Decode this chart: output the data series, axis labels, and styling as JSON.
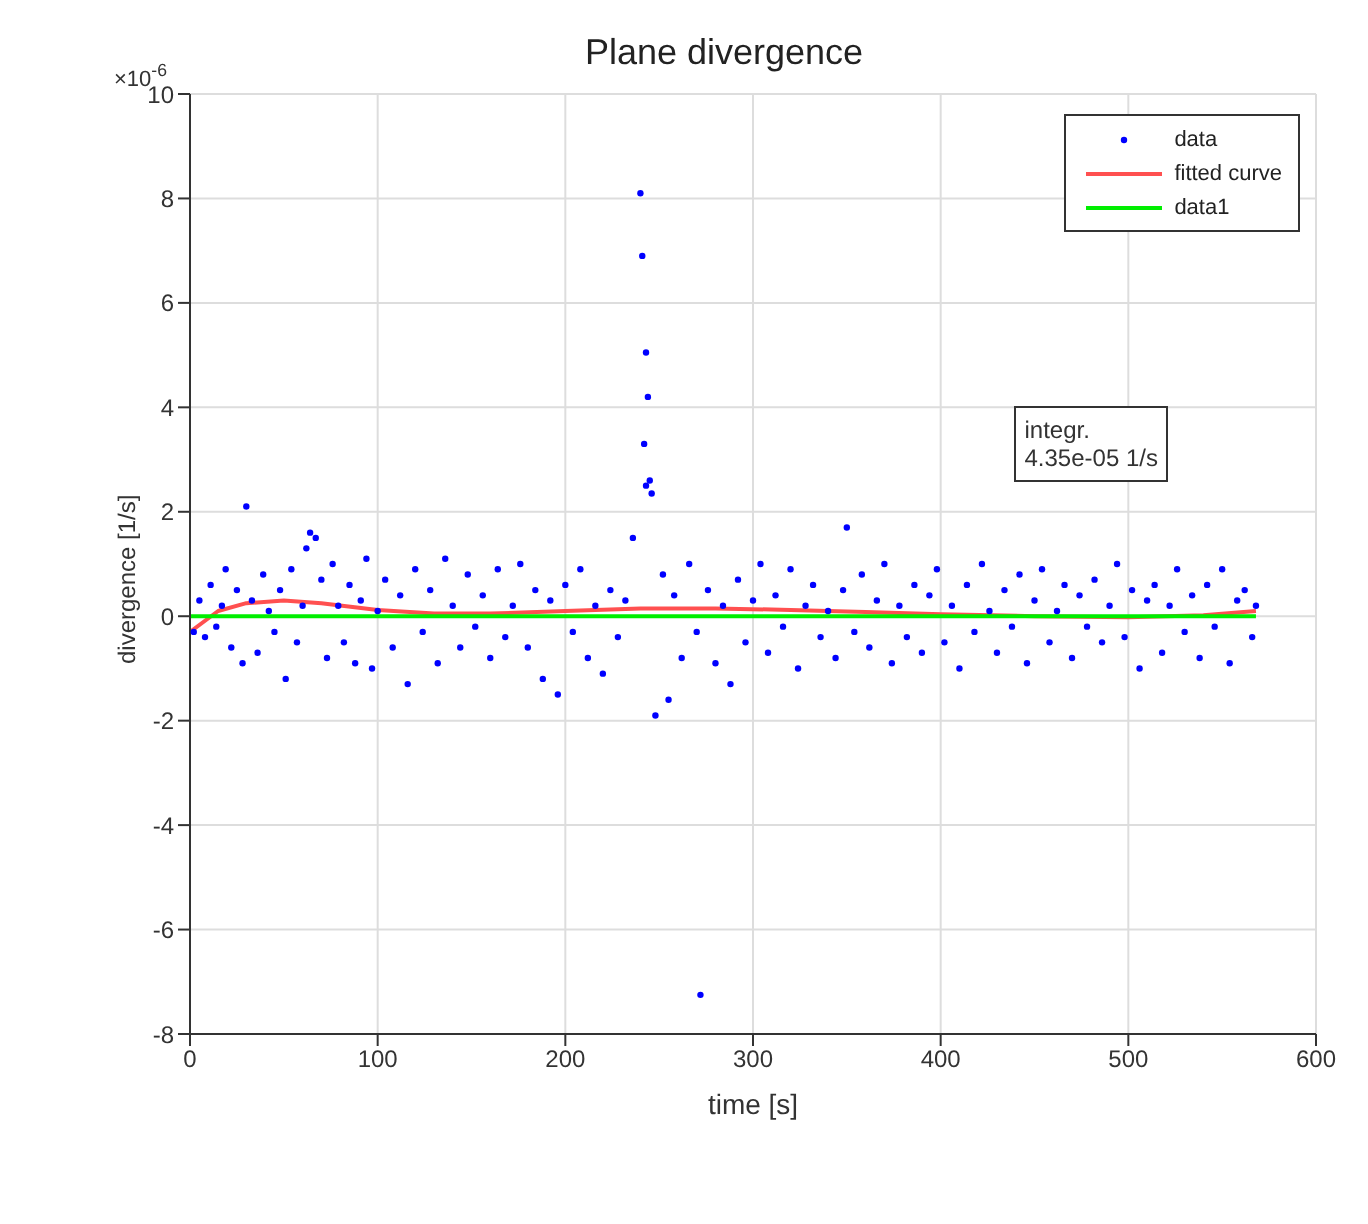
{
  "chart_data": {
    "type": "scatter",
    "title": "Plane divergence",
    "xlabel": "time [s]",
    "ylabel": "divergence [1/s]",
    "xlim": [
      0,
      600
    ],
    "xticks": [
      0,
      100,
      200,
      300,
      400,
      500,
      600
    ],
    "ylim": [
      -8,
      10
    ],
    "yticks": [
      -8,
      -6,
      -4,
      -2,
      0,
      2,
      4,
      6,
      8,
      10
    ],
    "grid": true,
    "legend": "top right",
    "line_style": "solid",
    "annotations": [
      "×10$^{-6}$",
      "integr.\n4.35e-05 1/s"
    ],
    "series": [
      {
        "name": "data",
        "type": "scatter",
        "marker": "circle",
        "color": "#0000ff",
        "x": [
          2,
          5,
          8,
          11,
          14,
          17,
          19,
          22,
          25,
          28,
          30,
          33,
          36,
          39,
          42,
          45,
          48,
          51,
          54,
          57,
          60,
          62,
          64,
          67,
          70,
          73,
          76,
          79,
          82,
          85,
          88,
          91,
          94,
          97,
          100,
          104,
          108,
          112,
          116,
          120,
          124,
          128,
          132,
          136,
          140,
          144,
          148,
          152,
          156,
          160,
          164,
          168,
          172,
          176,
          180,
          184,
          188,
          192,
          196,
          200,
          204,
          208,
          212,
          216,
          220,
          224,
          228,
          232,
          236,
          240,
          241,
          243,
          244,
          242,
          245,
          246,
          243,
          248,
          252,
          255,
          258,
          262,
          266,
          270,
          272,
          276,
          280,
          284,
          288,
          292,
          296,
          300,
          304,
          308,
          312,
          316,
          320,
          324,
          328,
          332,
          336,
          340,
          344,
          348,
          350,
          354,
          358,
          362,
          366,
          370,
          374,
          378,
          382,
          386,
          390,
          394,
          398,
          402,
          406,
          410,
          414,
          418,
          422,
          426,
          430,
          434,
          438,
          442,
          446,
          450,
          454,
          458,
          462,
          466,
          470,
          474,
          478,
          482,
          486,
          490,
          494,
          498,
          502,
          506,
          510,
          514,
          518,
          522,
          526,
          530,
          534,
          538,
          542,
          546,
          550,
          554,
          558,
          562,
          566,
          568
        ],
        "values": [
          -0.3,
          0.3,
          -0.4,
          0.6,
          -0.2,
          0.2,
          0.9,
          -0.6,
          0.5,
          -0.9,
          2.1,
          0.3,
          -0.7,
          0.8,
          0.1,
          -0.3,
          0.5,
          -1.2,
          0.9,
          -0.5,
          0.2,
          1.3,
          1.6,
          1.5,
          0.7,
          -0.8,
          1.0,
          0.2,
          -0.5,
          0.6,
          -0.9,
          0.3,
          1.1,
          -1.0,
          0.1,
          0.7,
          -0.6,
          0.4,
          -1.3,
          0.9,
          -0.3,
          0.5,
          -0.9,
          1.1,
          0.2,
          -0.6,
          0.8,
          -0.2,
          0.4,
          -0.8,
          0.9,
          -0.4,
          0.2,
          1.0,
          -0.6,
          0.5,
          -1.2,
          0.3,
          -1.5,
          0.6,
          -0.3,
          0.9,
          -0.8,
          0.2,
          -1.1,
          0.5,
          -0.4,
          0.3,
          1.5,
          8.1,
          6.9,
          5.05,
          4.2,
          3.3,
          2.6,
          2.35,
          2.5,
          -1.9,
          0.8,
          -1.6,
          0.4,
          -0.8,
          1.0,
          -0.3,
          -7.25,
          0.5,
          -0.9,
          0.2,
          -1.3,
          0.7,
          -0.5,
          0.3,
          1.0,
          -0.7,
          0.4,
          -0.2,
          0.9,
          -1.0,
          0.2,
          0.6,
          -0.4,
          0.1,
          -0.8,
          0.5,
          1.7,
          -0.3,
          0.8,
          -0.6,
          0.3,
          1.0,
          -0.9,
          0.2,
          -0.4,
          0.6,
          -0.7,
          0.4,
          0.9,
          -0.5,
          0.2,
          -1.0,
          0.6,
          -0.3,
          1.0,
          0.1,
          -0.7,
          0.5,
          -0.2,
          0.8,
          -0.9,
          0.3,
          0.9,
          -0.5,
          0.1,
          0.6,
          -0.8,
          0.4,
          -0.2,
          0.7,
          -0.5,
          0.2,
          1.0,
          -0.4,
          0.5,
          -1.0,
          0.3,
          0.6,
          -0.7,
          0.2,
          0.9,
          -0.3,
          0.4,
          -0.8,
          0.6,
          -0.2,
          0.9,
          -0.9,
          0.3,
          0.5,
          -0.4,
          0.2
        ]
      },
      {
        "name": "fitted curve",
        "type": "line",
        "marker": "none",
        "color": "#ff5050",
        "x": [
          0,
          15,
          30,
          50,
          70,
          100,
          130,
          160,
          200,
          240,
          280,
          320,
          360,
          400,
          450,
          500,
          540,
          568
        ],
        "values": [
          -0.3,
          0.1,
          0.25,
          0.3,
          0.25,
          0.12,
          0.05,
          0.05,
          0.1,
          0.15,
          0.15,
          0.12,
          0.08,
          0.04,
          0.0,
          -0.02,
          0.02,
          0.1
        ]
      },
      {
        "name": "data1",
        "type": "line",
        "marker": "none",
        "color": "#00ee00",
        "x": [
          0,
          568
        ],
        "values": [
          0,
          0
        ]
      }
    ]
  }
}
